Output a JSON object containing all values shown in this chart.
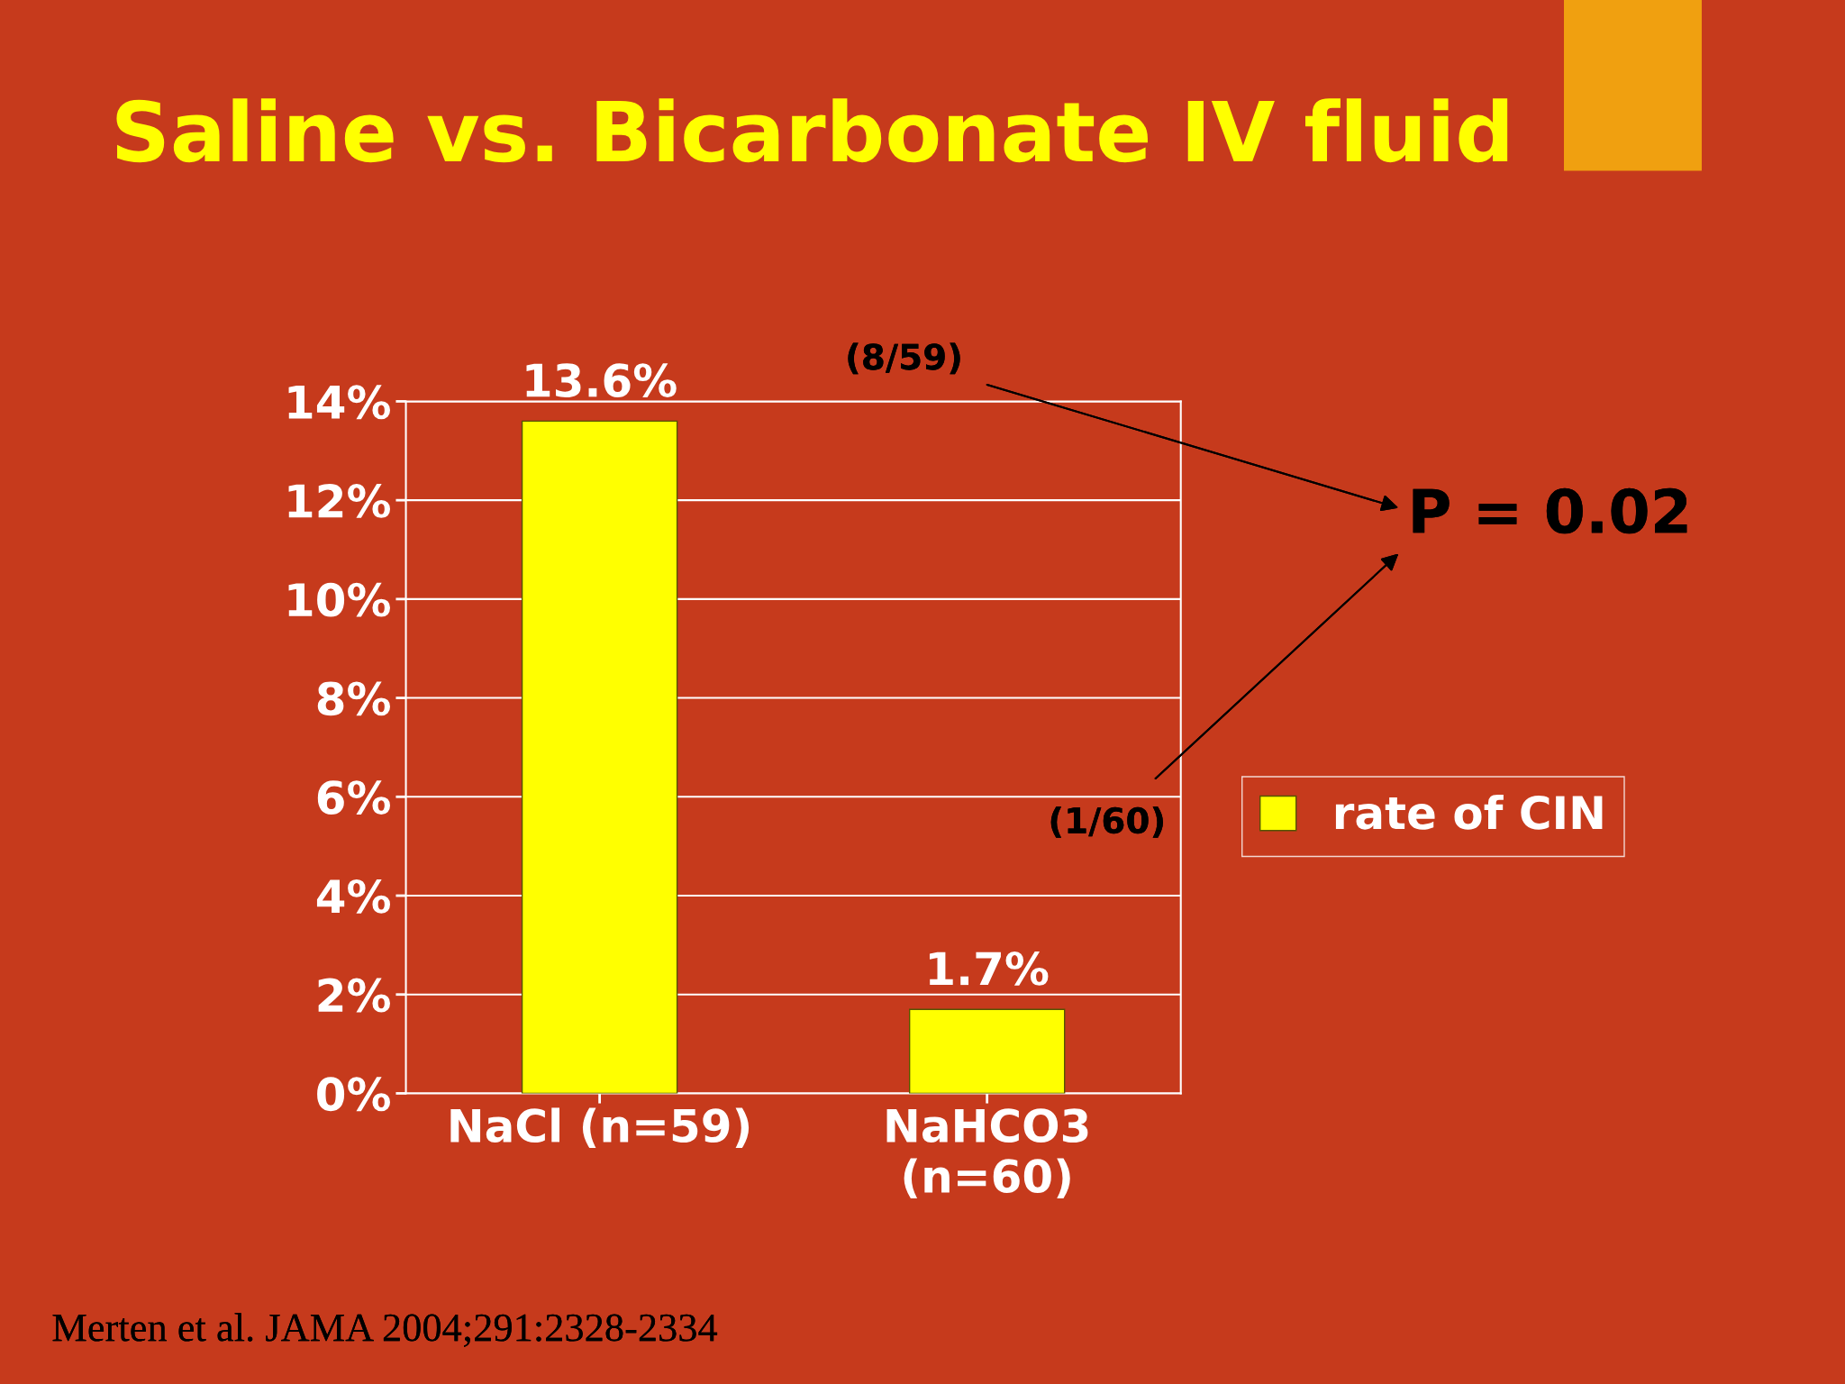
{
  "chart_data": {
    "type": "bar",
    "title": "Saline vs. Bicarbonate IV fluid",
    "categories": [
      "NaCl (n=59)",
      "NaHCO3\n(n=60)"
    ],
    "series": [
      {
        "name": "rate of CIN",
        "color": "#ffff00",
        "values": [
          13.6,
          1.7
        ],
        "value_labels": [
          "13.6%",
          "1.7%"
        ]
      }
    ],
    "ylim": [
      0,
      14
    ],
    "yticks": [
      {
        "value": 0,
        "label": "0%"
      },
      {
        "value": 2,
        "label": "2%"
      },
      {
        "value": 4,
        "label": "4%"
      },
      {
        "value": 6,
        "label": "6%"
      },
      {
        "value": 8,
        "label": "8%"
      },
      {
        "value": 10,
        "label": "10%"
      },
      {
        "value": 12,
        "label": "12%"
      },
      {
        "value": 14,
        "label": "14%"
      }
    ],
    "grid": "y",
    "legend": "right",
    "annotations": [
      "(8/59)",
      "(1/60)",
      "P = 0.02",
      "Merten et al. JAMA 2004;291:2328-2334"
    ]
  }
}
